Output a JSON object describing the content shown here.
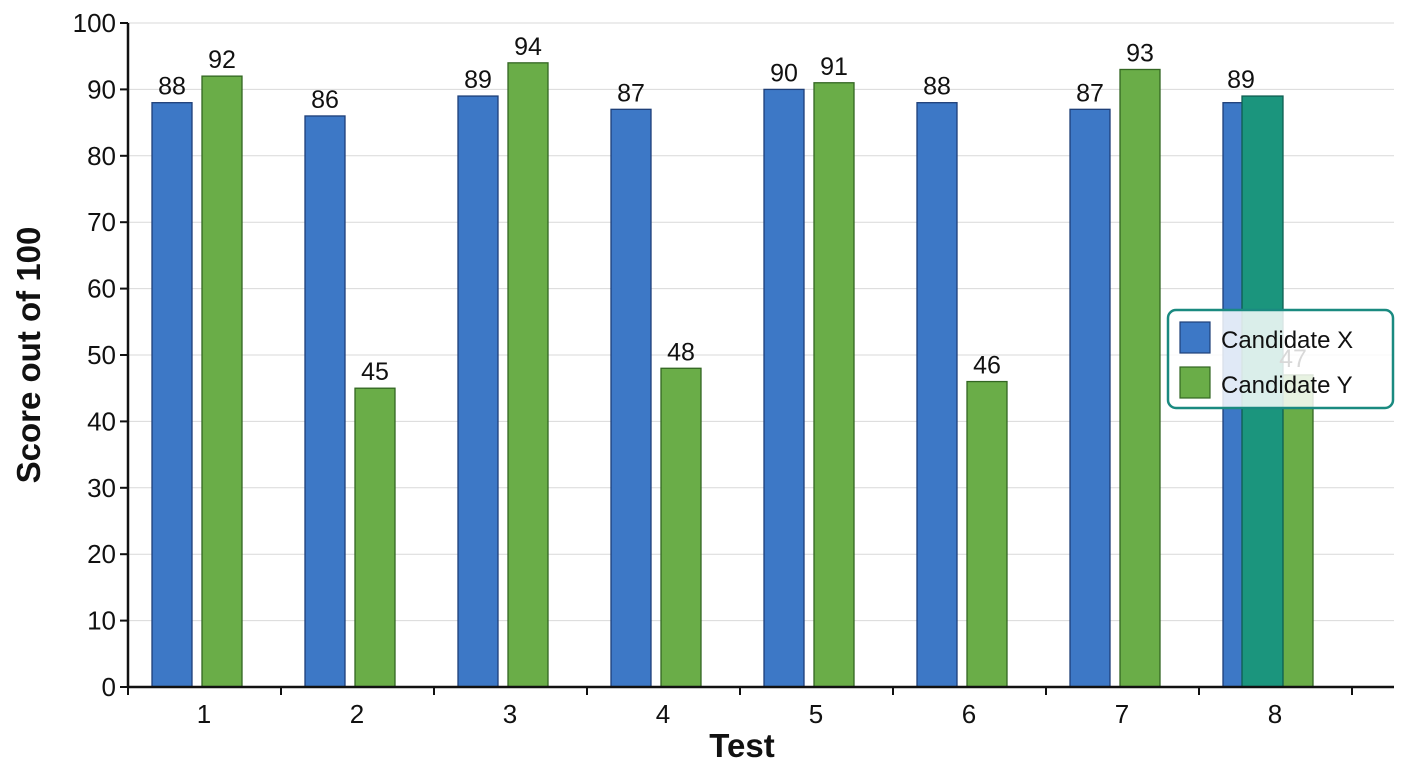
{
  "chart_data": {
    "type": "bar",
    "xlabel": "Test",
    "ylabel": "Score out of 100",
    "categories": [
      "1",
      "2",
      "3",
      "4",
      "5",
      "6",
      "7",
      "8"
    ],
    "ylim": [
      0,
      100
    ],
    "yticks": [
      0,
      10,
      20,
      30,
      40,
      50,
      60,
      70,
      80,
      90,
      100
    ],
    "grid": true,
    "legend_position": "right",
    "series": [
      {
        "name": "Candidate X",
        "color": "#3d78c6",
        "values": [
          88,
          86,
          89,
          87,
          90,
          88,
          87,
          88
        ]
      },
      {
        "name": "Candidate Y",
        "color": "#6aad48",
        "values": [
          92,
          45,
          94,
          48,
          91,
          46,
          93,
          47
        ]
      }
    ],
    "extra_bar": {
      "category": "8",
      "value": 89,
      "color": "#1b957d"
    },
    "data_labels": [
      {
        "category": "1",
        "series": 0,
        "text": "88"
      },
      {
        "category": "1",
        "series": 1,
        "text": "92"
      },
      {
        "category": "2",
        "series": 0,
        "text": "86"
      },
      {
        "category": "2",
        "series": 1,
        "text": "45"
      },
      {
        "category": "3",
        "series": 0,
        "text": "89"
      },
      {
        "category": "3",
        "series": 1,
        "text": "94"
      },
      {
        "category": "4",
        "series": 0,
        "text": "87"
      },
      {
        "category": "4",
        "series": 1,
        "text": "48"
      },
      {
        "category": "5",
        "series": 0,
        "text": "90"
      },
      {
        "category": "5",
        "series": 1,
        "text": "91"
      },
      {
        "category": "6",
        "series": 0,
        "text": "88"
      },
      {
        "category": "6",
        "series": 1,
        "text": "46"
      },
      {
        "category": "7",
        "series": 0,
        "text": "87"
      },
      {
        "category": "7",
        "series": 1,
        "text": "93"
      },
      {
        "category": "8",
        "series": "extra",
        "text": "89"
      },
      {
        "category": "8",
        "series": 1,
        "text": "47"
      }
    ]
  }
}
